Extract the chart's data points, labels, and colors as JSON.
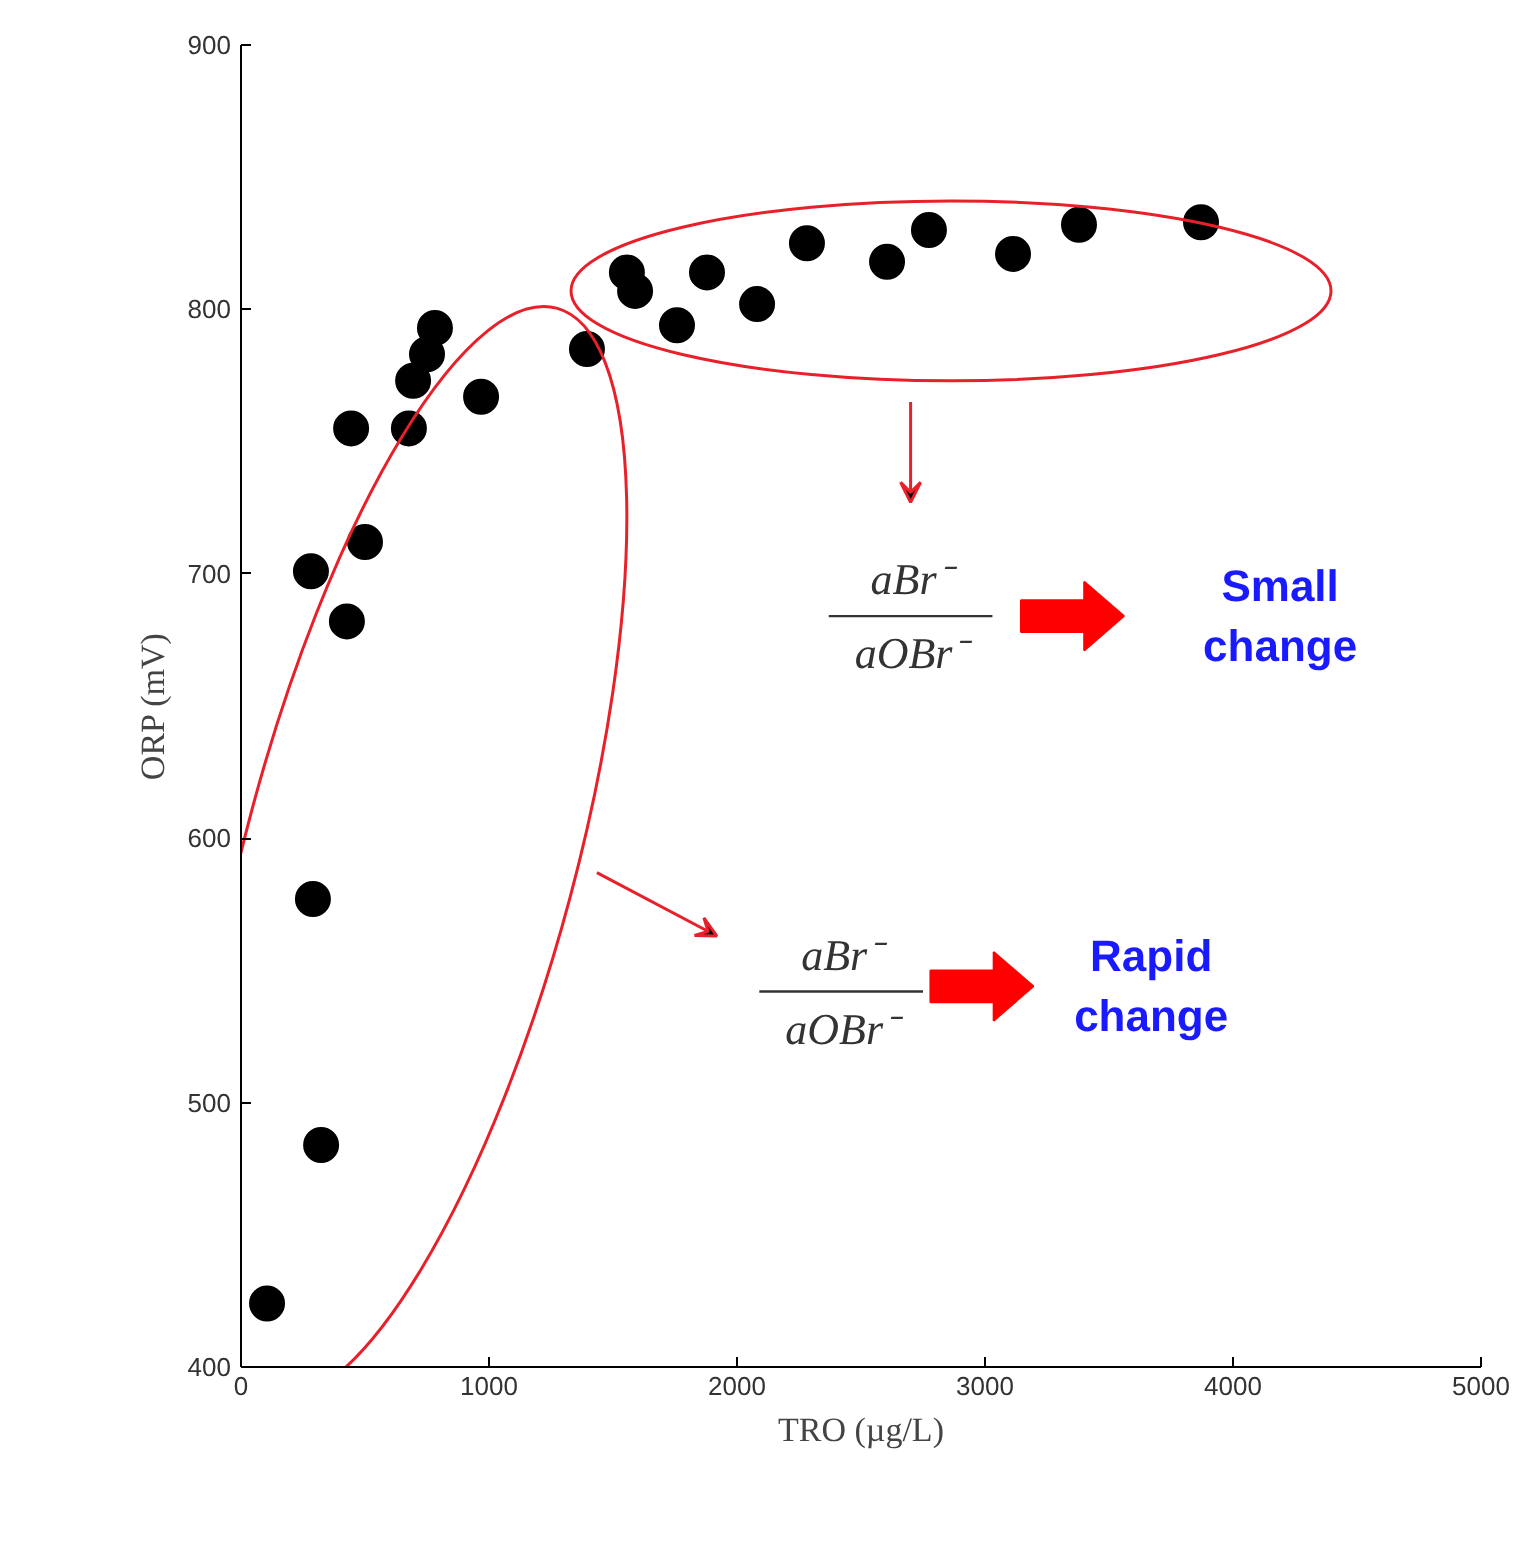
{
  "chart_data": {
    "type": "scatter",
    "xlabel": "TRO (µg/L)",
    "ylabel": "ORP (mV)",
    "x": [
      105,
      323,
      290,
      282,
      427,
      500,
      444,
      677,
      694,
      750,
      782,
      968,
      1395,
      1556,
      1589,
      1758,
      1879,
      2081,
      2282,
      2605,
      2774,
      3113,
      3379,
      3871
    ],
    "values": [
      424,
      484,
      577,
      701,
      682,
      712,
      755,
      755,
      773,
      783,
      793,
      767,
      785,
      814,
      807,
      794,
      814,
      802,
      825,
      818,
      830,
      821,
      832,
      833
    ],
    "color": "#000000",
    "marker": "circle",
    "xlim": [
      0,
      5000
    ],
    "ylim": [
      400,
      900
    ],
    "xticks": [
      0,
      1000,
      2000,
      3000,
      4000,
      5000
    ],
    "yticks": [
      400,
      500,
      600,
      700,
      800,
      900
    ],
    "annotations": [
      "aBr⁻",
      "aOBr⁻",
      "Small change",
      "aBr⁻",
      "aOBr⁻",
      "Rapid change"
    ]
  }
}
